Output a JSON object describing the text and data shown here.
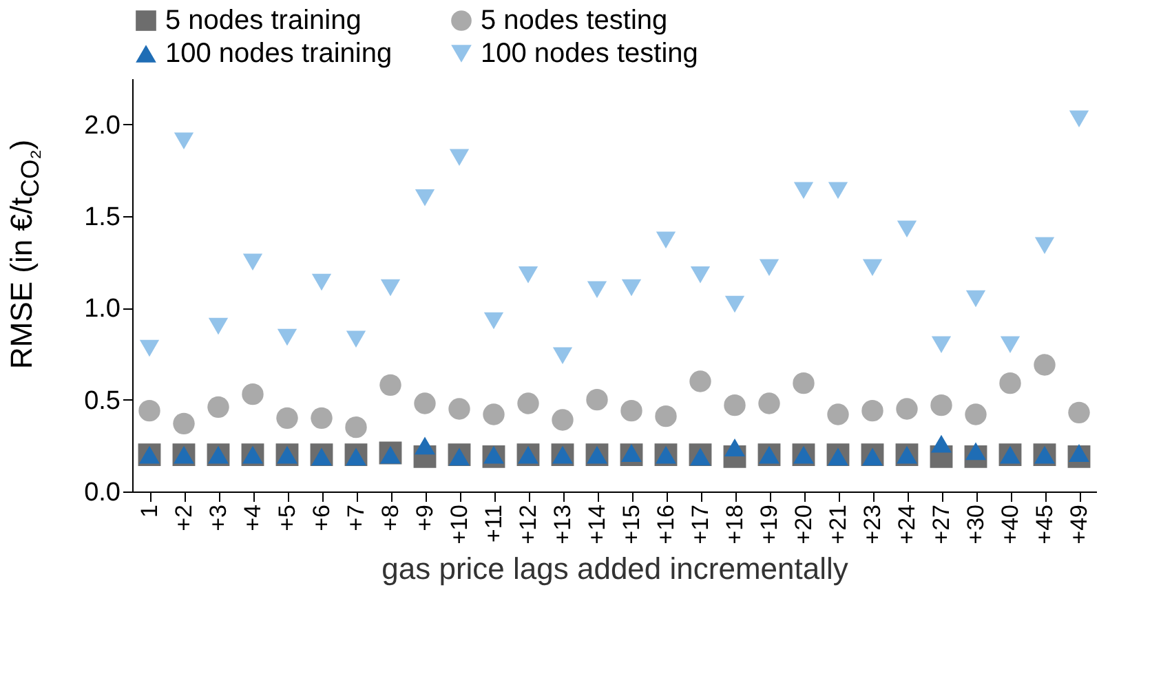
{
  "chart_data": {
    "type": "scatter",
    "xlabel": "gas price lags added incrementally",
    "ylabel": "RMSE (in €/t$_{CO₂}$)",
    "categories": [
      "1",
      "+2",
      "+3",
      "+4",
      "+5",
      "+6",
      "+7",
      "+8",
      "+9",
      "+10",
      "+11",
      "+12",
      "+13",
      "+14",
      "+15",
      "+16",
      "+17",
      "+18",
      "+19",
      "+20",
      "+21",
      "+23",
      "+24",
      "+27",
      "+30",
      "+40",
      "+45",
      "+49"
    ],
    "ylim": [
      0,
      2.25
    ],
    "yticks": [
      {
        "value": 0,
        "label": "0.0"
      },
      {
        "value": 0.5,
        "label": "0.5"
      },
      {
        "value": 1,
        "label": "1.0"
      },
      {
        "value": 1.5,
        "label": "1.5"
      },
      {
        "value": 2,
        "label": "2.0"
      }
    ],
    "grid": false,
    "legend": "top",
    "series": [
      {
        "name": "5 nodes training",
        "color": "#6d6d6d",
        "marker": "square",
        "values": [
          0.2,
          0.2,
          0.2,
          0.2,
          0.2,
          0.2,
          0.2,
          0.21,
          0.19,
          0.2,
          0.19,
          0.2,
          0.2,
          0.2,
          0.2,
          0.2,
          0.2,
          0.19,
          0.2,
          0.2,
          0.2,
          0.2,
          0.2,
          0.19,
          0.19,
          0.2,
          0.2,
          0.19
        ]
      },
      {
        "name": "5 nodes testing",
        "color": "#aaaaaa",
        "marker": "circle",
        "values": [
          0.44,
          0.37,
          0.46,
          0.53,
          0.4,
          0.4,
          0.35,
          0.58,
          0.48,
          0.45,
          0.42,
          0.48,
          0.39,
          0.5,
          0.44,
          0.41,
          0.6,
          0.47,
          0.48,
          0.59,
          0.42,
          0.44,
          0.45,
          0.47,
          0.42,
          0.59,
          0.69,
          0.43
        ]
      },
      {
        "name": "100 nodes training",
        "color": "#1f6db5",
        "marker": "triangle",
        "values": [
          0.2,
          0.2,
          0.2,
          0.2,
          0.2,
          0.19,
          0.19,
          0.2,
          0.25,
          0.19,
          0.2,
          0.2,
          0.2,
          0.2,
          0.21,
          0.2,
          0.19,
          0.24,
          0.2,
          0.2,
          0.19,
          0.19,
          0.2,
          0.26,
          0.22,
          0.2,
          0.2,
          0.21
        ]
      },
      {
        "name": "100 nodes testing",
        "color": "#93c3ea",
        "marker": "triangle-down",
        "values": [
          0.78,
          1.91,
          0.9,
          1.25,
          0.84,
          1.14,
          0.83,
          1.11,
          1.6,
          1.82,
          0.93,
          1.18,
          0.74,
          1.1,
          1.11,
          1.37,
          1.18,
          1.02,
          1.22,
          1.64,
          1.64,
          1.22,
          1.43,
          0.8,
          1.05,
          0.8,
          1.34,
          2.03
        ]
      }
    ]
  }
}
